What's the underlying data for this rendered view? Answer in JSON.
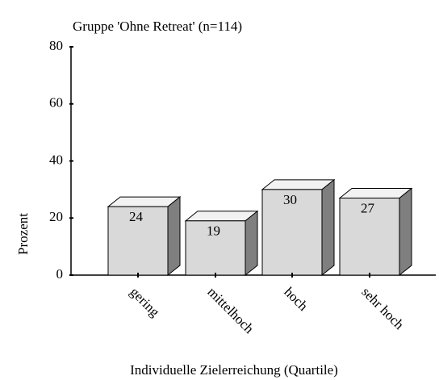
{
  "chart_data": {
    "type": "bar3d",
    "title": "Gruppe 'Ohne Retreat' (n=114)",
    "x_label": "Individuelle Zielerreichung (Quartile)",
    "y_label": "Prozent",
    "categories": [
      "gering",
      "mittelhoch",
      "hoch",
      "sehr hoch"
    ],
    "values": [
      24,
      19,
      30,
      27
    ],
    "color": "#d9d9d9",
    "ylim": [
      0,
      80
    ],
    "yticks": [
      0,
      20,
      40,
      60,
      80
    ],
    "grid": false
  }
}
